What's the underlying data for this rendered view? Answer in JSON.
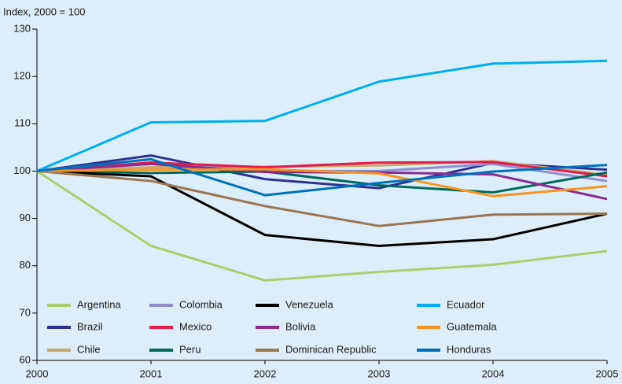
{
  "chart_data": {
    "type": "line",
    "y_axis_label": "Index, 2000 = 100",
    "x": [
      2000,
      2001,
      2002,
      2003,
      2004,
      2005
    ],
    "xlim": [
      2000,
      2005
    ],
    "xticks": [
      2000,
      2001,
      2002,
      2003,
      2004,
      2005
    ],
    "ylim": [
      60,
      130
    ],
    "yticks": [
      60,
      70,
      80,
      90,
      100,
      110,
      120,
      130
    ],
    "grid": false,
    "legend": "bottom",
    "series": [
      {
        "name": "Argentina",
        "color": "#a6d16e",
        "values": [
          100,
          84.2,
          76.9,
          78.7,
          80.2,
          83.1
        ]
      },
      {
        "name": "Brazil",
        "color": "#2e3192",
        "values": [
          100,
          103.3,
          98.3,
          96.4,
          101.7,
          100.3
        ]
      },
      {
        "name": "Chile",
        "color": "#c8a86b",
        "values": [
          100,
          100.8,
          100.9,
          101.2,
          102.1,
          99.2
        ]
      },
      {
        "name": "Colombia",
        "color": "#8f8fd0",
        "values": [
          100,
          101.8,
          100.0,
          100.0,
          101.5,
          97.9
        ]
      },
      {
        "name": "Mexico",
        "color": "#e8194b",
        "values": [
          100,
          101.8,
          100.8,
          101.8,
          101.9,
          98.9
        ]
      },
      {
        "name": "Peru",
        "color": "#00695c",
        "values": [
          100,
          99.6,
          99.9,
          97.0,
          95.5,
          99.7
        ]
      },
      {
        "name": "Venezuela",
        "color": "#000000",
        "values": [
          100,
          98.9,
          86.5,
          84.2,
          85.6,
          91.0
        ]
      },
      {
        "name": "Bolivia",
        "color": "#8b2c8f",
        "values": [
          100,
          101.5,
          99.8,
          99.7,
          99.3,
          94.1
        ]
      },
      {
        "name": "Dominican Republic",
        "color": "#9b7550",
        "values": [
          100,
          97.9,
          92.6,
          88.4,
          90.8,
          91.0
        ]
      },
      {
        "name": "Ecuador",
        "color": "#00aeef",
        "values": [
          100,
          110.3,
          110.6,
          118.9,
          122.7,
          123.3
        ]
      },
      {
        "name": "Guatemala",
        "color": "#f7941d",
        "values": [
          100,
          100.3,
          100.4,
          99.5,
          94.7,
          96.8
        ]
      },
      {
        "name": "Honduras",
        "color": "#0072bc",
        "values": [
          100,
          102.5,
          94.9,
          97.5,
          99.9,
          101.3
        ]
      }
    ]
  }
}
